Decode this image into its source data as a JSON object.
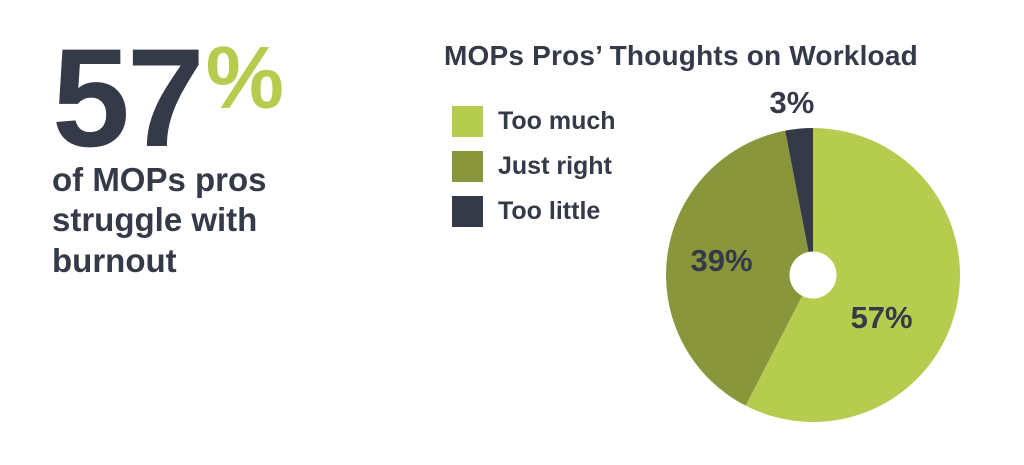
{
  "stat": {
    "number": "57",
    "percent_sign": "%",
    "caption": "of MOPs pros\nstruggle with\nburnout"
  },
  "colors": {
    "dark": "#343a48",
    "lime": "#b5cc4e",
    "olive": "#8a963c",
    "background": "#ffffff"
  },
  "chart_data": {
    "type": "pie",
    "title": "MOPs Pros’ Thoughts on Workload",
    "legend_position": "left",
    "start_angle": 0,
    "direction": "clockwise",
    "donut_hole_ratio": 0.16,
    "radius": 147,
    "series": [
      {
        "name": "Too much",
        "value": 57,
        "label": "57%",
        "color": "#b5cc4e",
        "label_inside": true,
        "label_angle": 122,
        "label_r": 0.55
      },
      {
        "name": "Just right",
        "value": 39,
        "label": "39%",
        "color": "#8a963c",
        "label_inside": true,
        "label_angle": 279,
        "label_r": 0.63
      },
      {
        "name": "Too little",
        "value": 3,
        "label": "3%",
        "color": "#343a48",
        "label_inside": false,
        "label_angle": 353,
        "label_r": 1.18
      }
    ]
  }
}
